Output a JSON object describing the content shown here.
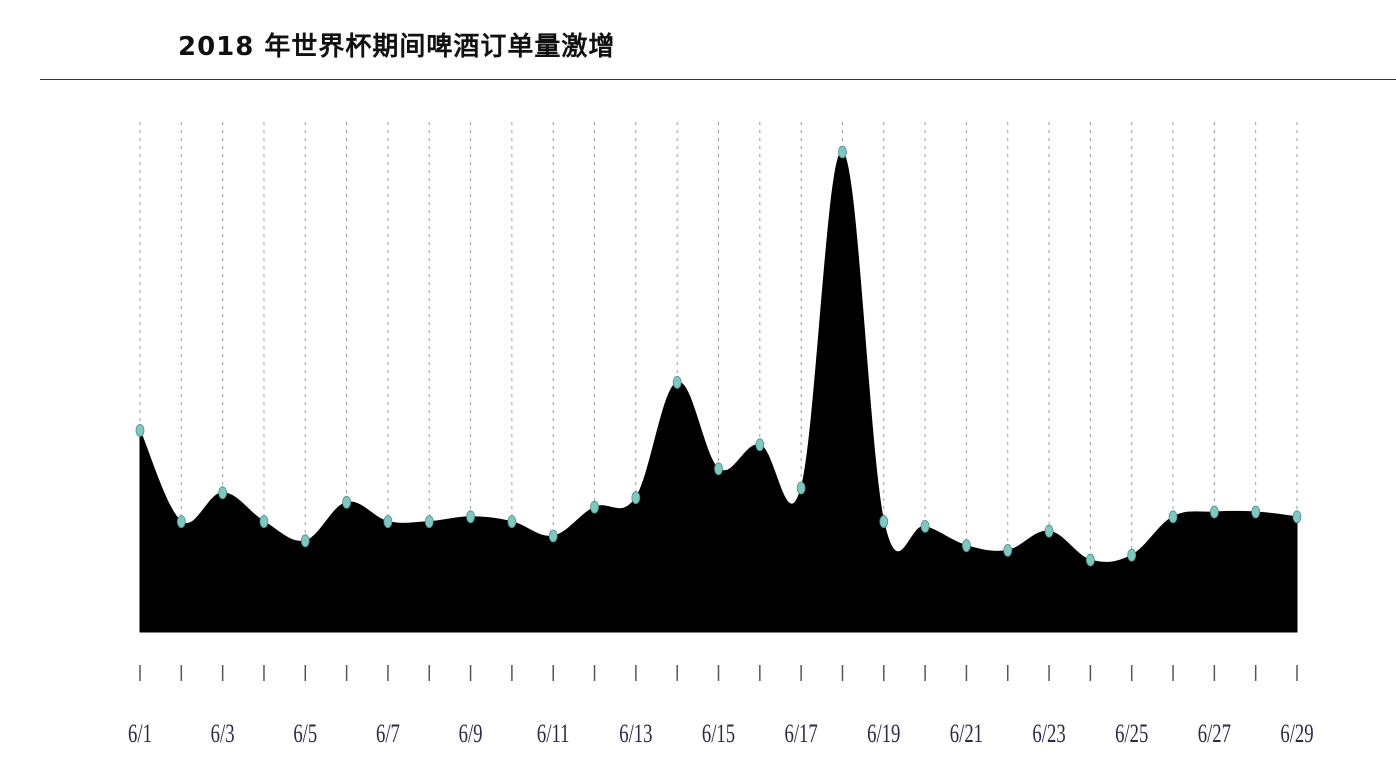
{
  "title": "2018 年世界杯期间啤酒订单量激增",
  "chart_data": {
    "type": "area",
    "title": "2018 年世界杯期间啤酒订单量激增",
    "xlabel": "",
    "ylabel": "",
    "x": [
      "6/1",
      "6/2",
      "6/3",
      "6/4",
      "6/5",
      "6/6",
      "6/7",
      "6/8",
      "6/9",
      "6/10",
      "6/11",
      "6/12",
      "6/13",
      "6/14",
      "6/15",
      "6/16",
      "6/17",
      "6/18",
      "6/19",
      "6/20",
      "6/21",
      "6/22",
      "6/23",
      "6/24",
      "6/25",
      "6/26",
      "6/27",
      "6/28",
      "6/29"
    ],
    "tick_labels": [
      "6/1",
      "6/3",
      "6/5",
      "6/7",
      "6/9",
      "6/11",
      "6/13",
      "6/15",
      "6/17",
      "6/19",
      "6/21",
      "6/23",
      "6/25",
      "6/27",
      "6/29"
    ],
    "values": [
      42,
      23,
      29,
      23,
      19,
      27,
      23,
      23,
      24,
      23,
      20,
      26,
      28,
      52,
      34,
      39,
      30,
      100,
      23,
      22,
      18,
      17,
      21,
      15,
      16,
      24,
      25,
      25,
      24
    ],
    "ylim": [
      0,
      100
    ],
    "grid": "vertical dashed",
    "colors": {
      "fill": "#000000",
      "marker": "#7fc7c0",
      "grid": "#9a9a9a",
      "tick": "#2a2a48"
    }
  }
}
